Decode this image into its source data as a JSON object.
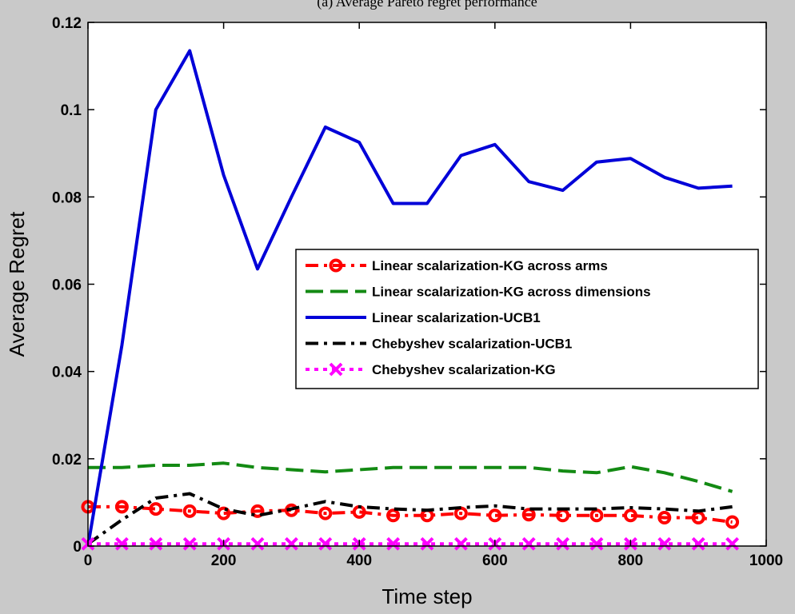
{
  "chart_data": {
    "type": "line",
    "title": "(a) Average Pareto regret performance",
    "xlabel": "Time step",
    "ylabel": "Average Regret",
    "xlim": [
      0,
      1000
    ],
    "ylim": [
      0,
      0.12
    ],
    "xticks": [
      0,
      200,
      400,
      600,
      800,
      1000
    ],
    "yticks": [
      0,
      0.02,
      0.04,
      0.06,
      0.08,
      0.1,
      0.12
    ],
    "ytick_labels": [
      "0",
      "0.02",
      "0.04",
      "0.06",
      "0.08",
      "0.1",
      "0.12"
    ],
    "grid": false,
    "legend_position": "center-right",
    "x": [
      0,
      50,
      100,
      150,
      200,
      250,
      300,
      350,
      400,
      450,
      500,
      550,
      600,
      650,
      700,
      750,
      800,
      850,
      900,
      950
    ],
    "series": [
      {
        "name": "Linear scalarization-KG across arms",
        "color": "#ff0000",
        "style": "dash-dot",
        "marker": "circle",
        "values": [
          0.009,
          0.009,
          0.0085,
          0.008,
          0.0075,
          0.008,
          0.0082,
          0.0075,
          0.0078,
          0.007,
          0.007,
          0.0075,
          0.007,
          0.0072,
          0.007,
          0.007,
          0.007,
          0.0065,
          0.0065,
          0.0055
        ]
      },
      {
        "name": "Linear scalarization-KG across dimensions",
        "color": "#138a13",
        "style": "dashed",
        "marker": "none",
        "values": [
          0.018,
          0.018,
          0.0185,
          0.0185,
          0.019,
          0.018,
          0.0175,
          0.017,
          0.0175,
          0.018,
          0.018,
          0.018,
          0.018,
          0.018,
          0.0172,
          0.0168,
          0.0182,
          0.0168,
          0.0148,
          0.0125
        ]
      },
      {
        "name": "Linear scalarization-UCB1",
        "color": "#0000d8",
        "style": "solid",
        "marker": "none",
        "values": [
          0.0,
          0.046,
          0.1,
          0.1135,
          0.085,
          0.0635,
          0.08,
          0.096,
          0.0925,
          0.0785,
          0.0785,
          0.0895,
          0.092,
          0.0835,
          0.0815,
          0.088,
          0.0888,
          0.0845,
          0.082,
          0.0825
        ]
      },
      {
        "name": "Chebyshev scalarization-UCB1",
        "color": "#000000",
        "style": "dash-dot",
        "marker": "none",
        "values": [
          0.0005,
          0.006,
          0.011,
          0.012,
          0.0085,
          0.007,
          0.0085,
          0.0102,
          0.009,
          0.0085,
          0.0082,
          0.0088,
          0.0092,
          0.0085,
          0.0085,
          0.0085,
          0.0088,
          0.0085,
          0.008,
          0.009
        ]
      },
      {
        "name": "Chebyshev scalarization-KG",
        "color": "#ff00ff",
        "style": "dotted",
        "marker": "x",
        "values": [
          0.0005,
          0.0005,
          0.0005,
          0.0005,
          0.0005,
          0.0005,
          0.0005,
          0.0005,
          0.0005,
          0.0005,
          0.0005,
          0.0005,
          0.0005,
          0.0005,
          0.0005,
          0.0005,
          0.0005,
          0.0005,
          0.0005,
          0.0005
        ]
      }
    ]
  }
}
